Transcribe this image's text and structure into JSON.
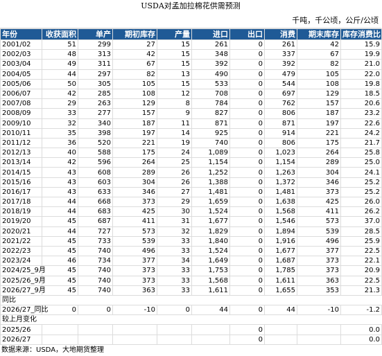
{
  "title": "USDA对孟加拉棉花供需预测",
  "unit": "千吨，千公顷，公斤/公顷",
  "table": {
    "header": [
      "年份",
      "收获面积",
      "单产",
      "期初库存",
      "产量",
      "进口",
      "出口",
      "消费",
      "期末库存",
      "库存消费比"
    ],
    "rows": [
      [
        "2001/02",
        "51",
        "299",
        "27",
        "15",
        "261",
        "0",
        "261",
        "42",
        "15.9"
      ],
      [
        "2002/03",
        "48",
        "313",
        "42",
        "15",
        "348",
        "0",
        "337",
        "67",
        "19.9"
      ],
      [
        "2003/04",
        "49",
        "311",
        "67",
        "15",
        "392",
        "0",
        "392",
        "82",
        "21.0"
      ],
      [
        "2004/05",
        "44",
        "297",
        "82",
        "13",
        "490",
        "0",
        "479",
        "105",
        "22.0"
      ],
      [
        "2005/06",
        "50",
        "305",
        "105",
        "15",
        "533",
        "0",
        "544",
        "108",
        "19.8"
      ],
      [
        "2006/07",
        "42",
        "285",
        "108",
        "12",
        "708",
        "0",
        "697",
        "129",
        "18.5"
      ],
      [
        "2007/08",
        "29",
        "263",
        "129",
        "8",
        "784",
        "0",
        "762",
        "157",
        "20.6"
      ],
      [
        "2008/09",
        "33",
        "277",
        "157",
        "9",
        "827",
        "0",
        "806",
        "187",
        "23.2"
      ],
      [
        "2009/10",
        "32",
        "340",
        "187",
        "11",
        "871",
        "0",
        "871",
        "197",
        "22.6"
      ],
      [
        "2010/11",
        "35",
        "398",
        "197",
        "14",
        "925",
        "0",
        "914",
        "221",
        "24.2"
      ],
      [
        "2011/12",
        "36",
        "520",
        "221",
        "19",
        "740",
        "0",
        "806",
        "175",
        "21.7"
      ],
      [
        "2012/13",
        "40",
        "588",
        "175",
        "24",
        "1,089",
        "0",
        "1,023",
        "264",
        "25.8"
      ],
      [
        "2013/14",
        "42",
        "596",
        "264",
        "25",
        "1,154",
        "0",
        "1,154",
        "289",
        "25.0"
      ],
      [
        "2014/15",
        "43",
        "608",
        "289",
        "26",
        "1,252",
        "0",
        "1,263",
        "304",
        "24.1"
      ],
      [
        "2015/16",
        "43",
        "603",
        "304",
        "26",
        "1,388",
        "0",
        "1,372",
        "346",
        "25.2"
      ],
      [
        "2016/17",
        "43",
        "633",
        "346",
        "27",
        "1,481",
        "0",
        "1,481",
        "373",
        "25.2"
      ],
      [
        "2017/18",
        "44",
        "668",
        "373",
        "29",
        "1,659",
        "0",
        "1,638",
        "425",
        "26.0"
      ],
      [
        "2018/19",
        "44",
        "683",
        "425",
        "30",
        "1,524",
        "0",
        "1,568",
        "411",
        "26.2"
      ],
      [
        "2019/20",
        "45",
        "687",
        "411",
        "31",
        "1,677",
        "0",
        "1,546",
        "573",
        "37.0"
      ],
      [
        "2020/21",
        "44",
        "727",
        "573",
        "32",
        "1,829",
        "0",
        "1,894",
        "539",
        "28.5"
      ],
      [
        "2021/22",
        "45",
        "733",
        "539",
        "33",
        "1,840",
        "0",
        "1,916",
        "496",
        "25.9"
      ],
      [
        "2022/23",
        "45",
        "740",
        "496",
        "33",
        "1,524",
        "0",
        "1,677",
        "377",
        "22.5"
      ],
      [
        "2023/24",
        "46",
        "734",
        "377",
        "34",
        "1,649",
        "0",
        "1,687",
        "373",
        "22.1"
      ],
      [
        "2024/25_9月",
        "45",
        "740",
        "373",
        "33",
        "1,753",
        "0",
        "1,785",
        "373",
        "20.9"
      ],
      [
        "2025/26_9月",
        "45",
        "740",
        "373",
        "33",
        "1,568",
        "0",
        "1,611",
        "363",
        "22.5"
      ],
      [
        "2026/27_9月",
        "45",
        "740",
        "363",
        "33",
        "1,611",
        "0",
        "1,655",
        "353",
        "21.3"
      ]
    ]
  },
  "yoy": {
    "label": "同比",
    "rows": [
      [
        "2026/27_同比",
        "0",
        "0",
        "-10",
        "0",
        "44",
        "0",
        "44",
        "-10",
        "-1.2"
      ]
    ]
  },
  "mom": {
    "label": "较上月变化",
    "rows": [
      [
        "2025/26",
        null,
        null,
        null,
        null,
        null,
        "0",
        null,
        null,
        "0.0"
      ],
      [
        "2026/27",
        null,
        null,
        null,
        null,
        null,
        "0",
        null,
        null,
        "0.0"
      ]
    ]
  },
  "source": "数据来源：USDA，大地期货整理"
}
